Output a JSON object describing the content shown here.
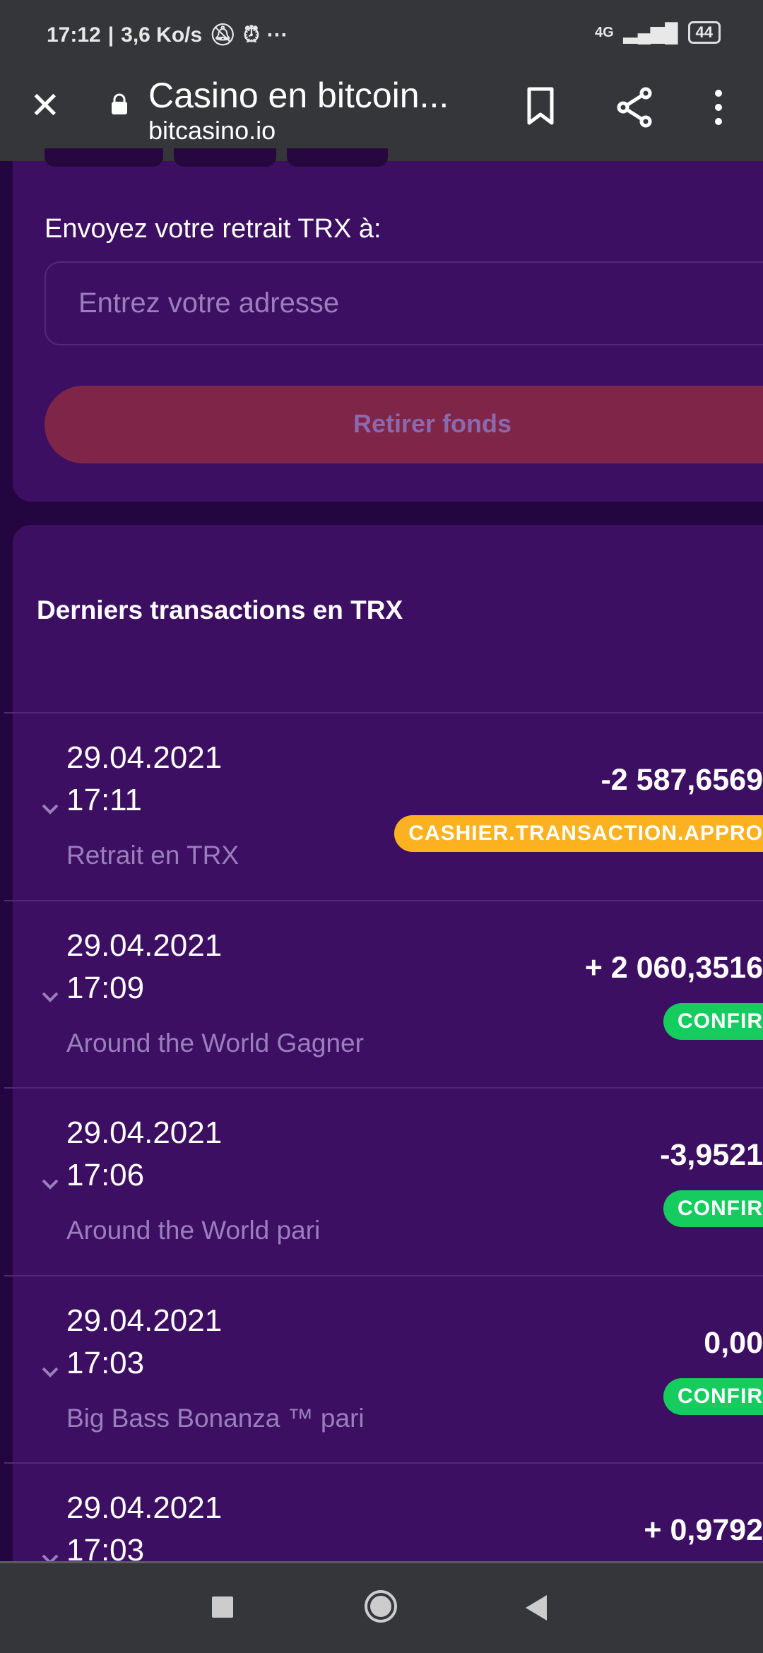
{
  "status_bar": {
    "time": "17:12",
    "speed": "3,6 Ko/s",
    "network": "4G",
    "battery": "44"
  },
  "browser": {
    "title": "Casino en bitcoin...",
    "url": "bitcasino.io"
  },
  "withdraw": {
    "label": "Envoyez votre retrait TRX à:",
    "address_placeholder": "Entrez votre adresse",
    "address_value": "",
    "submit_label": "Retirer fonds"
  },
  "transactions": {
    "title": "Derniers transactions en TRX",
    "items": [
      {
        "date": "29.04.2021",
        "time": "17:11",
        "description": "Retrait en TRX",
        "amount": "-2 587,6569",
        "status": "CASHIER.TRANSACTION.APPRO",
        "status_color": "#fbb120"
      },
      {
        "date": "29.04.2021",
        "time": "17:09",
        "description": "Around the World Gagner",
        "amount": "+ 2 060,3516",
        "status": "CONFIR",
        "status_color": "#16cc5f"
      },
      {
        "date": "29.04.2021",
        "time": "17:06",
        "description": "Around the World pari",
        "amount": "-3,9521",
        "status": "CONFIR",
        "status_color": "#16cc5f"
      },
      {
        "date": "29.04.2021",
        "time": "17:03",
        "description": "Big Bass Bonanza ™ pari",
        "amount": "0,00",
        "status": "CONFIR",
        "status_color": "#16cc5f"
      },
      {
        "date": "29.04.2021",
        "time": "17:03",
        "description": "",
        "amount": "+ 0,9792",
        "status": "",
        "status_color": "#16cc5f"
      }
    ]
  }
}
